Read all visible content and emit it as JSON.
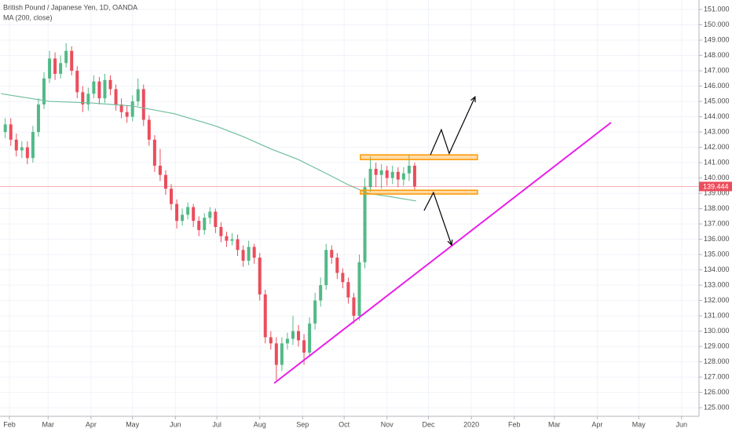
{
  "chart_data": {
    "type": "candlestick",
    "title": "British Pound / Japanese Yen, 1D, OANDA",
    "subtitle": "MA (200, close)",
    "x": [
      28,
      32,
      36,
      40,
      44,
      48,
      52,
      56,
      60,
      64,
      68,
      72,
      76,
      80,
      84,
      88,
      92,
      96,
      100,
      104,
      108,
      112,
      116,
      120,
      124,
      128,
      132,
      136,
      140,
      144,
      148,
      152,
      156,
      160,
      164,
      168,
      172,
      176,
      180,
      184,
      188,
      192,
      196,
      200,
      204,
      208,
      212,
      216,
      220,
      224,
      228,
      232,
      236,
      240,
      244,
      248,
      252,
      256,
      260,
      264,
      268,
      272,
      276,
      280,
      284,
      288,
      292,
      296,
      300,
      304,
      308,
      312,
      316,
      320,
      324
    ],
    "open": [
      143.0,
      143.5,
      142.5,
      141.8,
      142.0,
      141.3,
      143.0,
      144.8,
      146.5,
      147.8,
      146.8,
      147.5,
      148.3,
      147.0,
      145.6,
      144.8,
      145.5,
      146.3,
      145.2,
      146.4,
      145.8,
      144.8,
      144.3,
      144.0,
      145.0,
      145.8,
      143.8,
      142.5,
      140.8,
      140.2,
      139.3,
      138.3,
      137.2,
      137.6,
      138.1,
      137.2,
      136.6,
      137.4,
      137.8,
      136.8,
      136.2,
      135.9,
      136.0,
      135.3,
      134.6,
      135.5,
      134.8,
      132.4,
      129.6,
      129.2,
      127.8,
      129.2,
      129.5,
      130.0,
      129.4,
      128.6,
      130.5,
      132.0,
      133.0,
      135.3,
      134.8,
      133.8,
      133.2,
      132.2,
      131.0,
      134.5,
      139.4,
      140.6,
      140.2,
      140.5,
      140.0,
      140.4,
      139.9,
      140.3,
      140.8
    ],
    "high": [
      143.9,
      143.9,
      142.9,
      142.4,
      142.4,
      143.4,
      145.2,
      146.9,
      148.3,
      148.2,
      148.0,
      148.8,
      148.6,
      147.3,
      146.0,
      145.9,
      146.7,
      146.6,
      146.8,
      146.7,
      146.1,
      145.2,
      144.7,
      145.4,
      146.5,
      146.1,
      144.1,
      142.8,
      141.9,
      140.5,
      139.6,
      138.6,
      138.0,
      138.4,
      138.3,
      137.5,
      137.7,
      138.1,
      138.0,
      137.1,
      136.5,
      136.4,
      136.3,
      135.6,
      135.9,
      135.7,
      135.1,
      132.7,
      130.0,
      129.6,
      129.6,
      129.9,
      131.0,
      130.4,
      129.8,
      130.9,
      132.5,
      133.5,
      135.7,
      135.6,
      135.1,
      134.1,
      133.5,
      132.5,
      135.0,
      140.0,
      141.4,
      141.0,
      140.9,
      140.8,
      140.8,
      140.7,
      140.7,
      141.5,
      141.0
    ],
    "low": [
      142.6,
      142.1,
      141.4,
      141.3,
      140.9,
      141.0,
      142.7,
      144.5,
      146.2,
      146.4,
      146.5,
      147.2,
      146.7,
      145.2,
      144.3,
      144.4,
      145.2,
      144.8,
      144.9,
      145.4,
      144.4,
      143.9,
      143.6,
      143.7,
      144.7,
      143.4,
      142.1,
      140.4,
      139.8,
      138.9,
      137.9,
      136.7,
      136.9,
      137.3,
      136.8,
      136.2,
      136.3,
      137.0,
      136.4,
      135.8,
      135.5,
      135.6,
      134.9,
      134.2,
      134.3,
      134.4,
      132.0,
      129.2,
      128.8,
      126.8,
      127.4,
      128.8,
      129.1,
      129.0,
      127.8,
      128.3,
      130.1,
      131.6,
      132.7,
      134.4,
      133.4,
      132.8,
      131.8,
      130.5,
      130.7,
      134.1,
      139.1,
      139.4,
      139.3,
      139.5,
      139.6,
      139.4,
      139.5,
      139.8,
      139.2
    ],
    "close": [
      143.5,
      142.5,
      141.8,
      142.0,
      141.3,
      143.0,
      144.8,
      146.5,
      147.8,
      146.8,
      147.5,
      148.3,
      147.0,
      145.6,
      144.8,
      145.5,
      146.3,
      145.2,
      146.4,
      145.8,
      144.8,
      144.3,
      144.0,
      145.0,
      145.8,
      143.8,
      142.5,
      140.8,
      140.2,
      139.3,
      138.3,
      137.2,
      137.6,
      138.1,
      137.2,
      136.6,
      137.4,
      137.8,
      136.8,
      136.2,
      135.9,
      136.0,
      135.3,
      134.6,
      135.5,
      134.8,
      132.4,
      129.6,
      129.2,
      127.8,
      129.2,
      129.5,
      130.0,
      129.4,
      128.6,
      130.5,
      132.0,
      133.0,
      135.3,
      134.8,
      133.8,
      133.2,
      132.2,
      131.0,
      134.5,
      139.4,
      140.6,
      140.2,
      140.5,
      140.0,
      140.4,
      139.9,
      140.3,
      140.8,
      139.444
    ],
    "up_color": "#53b987",
    "down_color": "#eb4d5c",
    "ma": {
      "x": [
        25,
        60,
        90,
        120,
        150,
        180,
        200,
        220,
        240,
        260,
        275,
        290,
        305,
        325
      ],
      "values": [
        145.5,
        145.0,
        144.9,
        144.7,
        144.2,
        143.4,
        142.7,
        141.9,
        141.2,
        140.3,
        139.6,
        139.0,
        138.8,
        138.5
      ],
      "color": "#6fbf9b"
    },
    "last_price": 139.444,
    "last_price_color": "#eb4d5c",
    "xlim": [
      24.2,
      529.6
    ],
    "ylim": [
      124.44,
      151.62
    ],
    "xticks": [
      {
        "value": 31,
        "label": "Feb"
      },
      {
        "value": 59,
        "label": "Mar"
      },
      {
        "value": 90,
        "label": "Apr"
      },
      {
        "value": 120,
        "label": "May"
      },
      {
        "value": 151,
        "label": "Jun"
      },
      {
        "value": 181,
        "label": "Jul"
      },
      {
        "value": 212,
        "label": "Aug"
      },
      {
        "value": 243,
        "label": "Sep"
      },
      {
        "value": 273,
        "label": "Oct"
      },
      {
        "value": 304,
        "label": "Nov"
      },
      {
        "value": 334,
        "label": "Dec"
      },
      {
        "value": 365,
        "label": "2020"
      },
      {
        "value": 396,
        "label": "Feb"
      },
      {
        "value": 425,
        "label": "Mar"
      },
      {
        "value": 456,
        "label": "Apr"
      },
      {
        "value": 486,
        "label": "May"
      },
      {
        "value": 517,
        "label": "Jun"
      }
    ],
    "yticks": [
      {
        "value": 125,
        "label": "125.000"
      },
      {
        "value": 126,
        "label": "126.000"
      },
      {
        "value": 127,
        "label": "127.000"
      },
      {
        "value": 128,
        "label": "128.000"
      },
      {
        "value": 129,
        "label": "129.000"
      },
      {
        "value": 130,
        "label": "130.000"
      },
      {
        "value": 131,
        "label": "131.000"
      },
      {
        "value": 132,
        "label": "132.000"
      },
      {
        "value": 133,
        "label": "133.000"
      },
      {
        "value": 134,
        "label": "134.000"
      },
      {
        "value": 135,
        "label": "135.000"
      },
      {
        "value": 136,
        "label": "136.000"
      },
      {
        "value": 137,
        "label": "137.000"
      },
      {
        "value": 138,
        "label": "138.000"
      },
      {
        "value": 139,
        "label": "139.000"
      },
      {
        "value": 140,
        "label": "140.000"
      },
      {
        "value": 141,
        "label": "141.000"
      },
      {
        "value": 142,
        "label": "142.000"
      },
      {
        "value": 143,
        "label": "143.000"
      },
      {
        "value": 144,
        "label": "144.000"
      },
      {
        "value": 145,
        "label": "145.000"
      },
      {
        "value": 146,
        "label": "146.000"
      },
      {
        "value": 147,
        "label": "147.000"
      },
      {
        "value": 148,
        "label": "148.000"
      },
      {
        "value": 149,
        "label": "149.000"
      },
      {
        "value": 150,
        "label": "150.000"
      },
      {
        "value": 151,
        "label": "151.000"
      }
    ],
    "grid": true,
    "drawings": {
      "rectangles": [
        {
          "x": [
            284.8,
            369.4
          ],
          "y": [
            141.2,
            141.51
          ],
          "color": "#ff9800"
        },
        {
          "x": [
            284.8,
            369.4
          ],
          "y": [
            138.95,
            139.2
          ],
          "color": "#ff9800"
        }
      ],
      "trendline": {
        "x": [
          222.4,
          466
        ],
        "y": [
          126.6,
          143.62
        ],
        "color": "#e91ee9"
      },
      "arrows": [
        {
          "x": [
            335.4,
            343.3,
            349.0,
            367.7
          ],
          "y": [
            141.51,
            143.15,
            141.6,
            145.3
          ]
        },
        {
          "x": [
            330.8,
            337.6,
            350.7
          ],
          "y": [
            137.87,
            139.05,
            135.62
          ]
        }
      ]
    }
  }
}
